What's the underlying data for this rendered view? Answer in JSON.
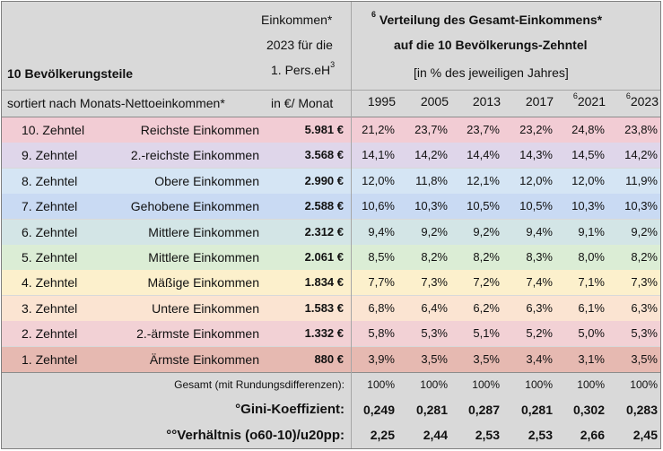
{
  "header": {
    "income_line1": "Einkommen*",
    "income_line2": "2023 für die",
    "income_line3_pre": "1. Pers.eH",
    "income_line3_sup": "3",
    "income_unit": "in €/ Monat",
    "dist_sup": "6",
    "dist_title": "Verteilung des Gesamt-Einkommens*",
    "dist_subtitle": "auf die 10 Bevölkerungs-Zehntel",
    "dist_unit": "[in % des jeweiligen Jahres]",
    "left_title": "10 Bevölkerungsteile",
    "left_subtitle": "sortiert nach Monats-Nettoeinkommen*",
    "years": [
      {
        "sup": "",
        "label": "1995"
      },
      {
        "sup": "",
        "label": "2005"
      },
      {
        "sup": "",
        "label": "2013"
      },
      {
        "sup": "",
        "label": "2017"
      },
      {
        "sup": "6",
        "label": "2021"
      },
      {
        "sup": "6",
        "label": "2023"
      }
    ]
  },
  "rows": [
    {
      "decile": "10. Zehntel",
      "group": "Reichste Einkommen",
      "income": "5.981 €",
      "values": [
        "21,2%",
        "23,7%",
        "23,7%",
        "23,2%",
        "24,8%",
        "23,8%"
      ],
      "color": "#f2ccd4"
    },
    {
      "decile": "9. Zehntel",
      "group": "2.-reichste Einkommen",
      "income": "3.568 €",
      "values": [
        "14,1%",
        "14,2%",
        "14,4%",
        "14,3%",
        "14,5%",
        "14,2%"
      ],
      "color": "#dfd6ea"
    },
    {
      "decile": "8. Zehntel",
      "group": "Obere Einkommen",
      "income": "2.990 €",
      "values": [
        "12,0%",
        "11,8%",
        "12,1%",
        "12,0%",
        "12,0%",
        "11,9%"
      ],
      "color": "#d5e5f4"
    },
    {
      "decile": "7. Zehntel",
      "group": "Gehobene Einkommen",
      "income": "2.588 €",
      "values": [
        "10,6%",
        "10,3%",
        "10,5%",
        "10,5%",
        "10,3%",
        "10,3%"
      ],
      "color": "#c9daf3"
    },
    {
      "decile": "6. Zehntel",
      "group": "Mittlere Einkommen",
      "income": "2.312 €",
      "values": [
        "9,4%",
        "9,2%",
        "9,2%",
        "9,4%",
        "9,1%",
        "9,2%"
      ],
      "color": "#d3e5e6"
    },
    {
      "decile": "5. Zehntel",
      "group": "Mittlere Einkommen",
      "income": "2.061 €",
      "values": [
        "8,5%",
        "8,2%",
        "8,2%",
        "8,3%",
        "8,0%",
        "8,2%"
      ],
      "color": "#dbedd5"
    },
    {
      "decile": "4. Zehntel",
      "group": "Mäßige Einkommen",
      "income": "1.834 €",
      "values": [
        "7,7%",
        "7,3%",
        "7,2%",
        "7,4%",
        "7,1%",
        "7,3%"
      ],
      "color": "#fcf0cc"
    },
    {
      "decile": "3. Zehntel",
      "group": "Untere Einkommen",
      "income": "1.583 €",
      "values": [
        "6,8%",
        "6,4%",
        "6,2%",
        "6,3%",
        "6,1%",
        "6,3%"
      ],
      "color": "#fbe4d2"
    },
    {
      "decile": "2. Zehntel",
      "group": "2.-ärmste Einkommen",
      "income": "1.332 €",
      "values": [
        "5,8%",
        "5,3%",
        "5,1%",
        "5,2%",
        "5,0%",
        "5,3%"
      ],
      "color": "#f2d1d5"
    },
    {
      "decile": "1. Zehntel",
      "group": "Ärmste Einkommen",
      "income": "880 €",
      "values": [
        "3,9%",
        "3,5%",
        "3,5%",
        "3,4%",
        "3,1%",
        "3,5%"
      ],
      "color": "#e6b9b1"
    }
  ],
  "footer": {
    "total_label": "Gesamt (mit Rundungsdifferenzen):",
    "total_values": [
      "100%",
      "100%",
      "100%",
      "100%",
      "100%",
      "100%"
    ],
    "gini_label": "°Gini-Koeffizient:",
    "gini_values": [
      "0,249",
      "0,281",
      "0,287",
      "0,281",
      "0,302",
      "0,283"
    ],
    "ratio_label": "°°Verhältnis (o60-10)/u20pp:",
    "ratio_values": [
      "2,25",
      "2,44",
      "2,53",
      "2,53",
      "2,66",
      "2,45"
    ]
  }
}
